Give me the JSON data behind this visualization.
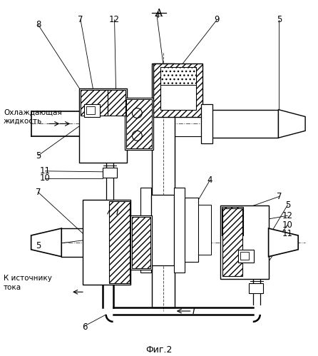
{
  "bg_color": "#ffffff",
  "title": "А",
  "fig_label": "Фиг.2",
  "text_cooling": "Охлаждающая\nжидкость",
  "text_current": "К источнику\nтока",
  "current_label": "I"
}
